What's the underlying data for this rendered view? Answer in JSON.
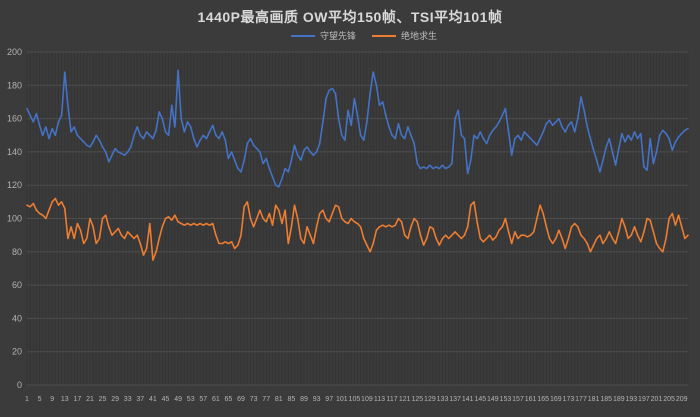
{
  "window": {
    "background": "#3b3b3b"
  },
  "chart_data": {
    "type": "line",
    "title": "1440P最高画质 OW平均150帧、TSI平均101帧",
    "xlabel": "",
    "ylabel": "",
    "ylim": [
      0,
      200
    ],
    "y_tick_step": 20,
    "x_start": 1,
    "x_count": 211,
    "x_tick_start": 1,
    "x_tick_step": 4,
    "x_tick_end": 209,
    "grid": true,
    "legend_position": "top",
    "colors": {
      "background": "#3b3b3b",
      "vertical_grid": "#343434",
      "horizontal_grid": "#4d4d4d",
      "axis_label": "#b3b3b3",
      "title_text": "#d9d9d9",
      "legend_text": "#bdbdbd"
    },
    "series": [
      {
        "name": "守望先锋",
        "color": "#4472c4",
        "values": [
          166,
          162,
          158,
          163,
          156,
          150,
          155,
          148,
          154,
          150,
          158,
          162,
          188,
          168,
          152,
          155,
          150,
          148,
          146,
          144,
          143,
          146,
          150,
          147,
          143,
          140,
          134,
          138,
          142,
          140,
          139,
          138,
          140,
          143,
          150,
          155,
          150,
          148,
          152,
          150,
          148,
          153,
          164,
          160,
          152,
          150,
          168,
          155,
          189,
          160,
          152,
          158,
          155,
          148,
          143,
          147,
          150,
          148,
          152,
          156,
          150,
          148,
          152,
          147,
          136,
          140,
          135,
          130,
          128,
          135,
          145,
          148,
          144,
          142,
          140,
          133,
          136,
          130,
          125,
          120,
          119,
          124,
          130,
          128,
          135,
          144,
          138,
          135,
          141,
          143,
          140,
          138,
          140,
          145,
          158,
          172,
          177,
          178,
          175,
          160,
          150,
          147,
          165,
          156,
          172,
          162,
          150,
          147,
          158,
          175,
          188,
          180,
          168,
          170,
          162,
          155,
          150,
          148,
          157,
          150,
          148,
          155,
          150,
          145,
          133,
          130,
          131,
          130,
          132,
          130,
          131,
          130,
          132,
          130,
          131,
          133,
          160,
          165,
          150,
          148,
          127,
          135,
          150,
          148,
          152,
          148,
          145,
          150,
          153,
          155,
          158,
          162,
          166,
          152,
          138,
          148,
          150,
          147,
          152,
          150,
          148,
          146,
          144,
          148,
          152,
          157,
          159,
          156,
          158,
          160,
          155,
          152,
          156,
          158,
          152,
          160,
          173,
          165,
          155,
          148,
          141,
          135,
          128,
          135,
          143,
          148,
          140,
          132,
          142,
          151,
          146,
          150,
          147,
          152,
          148,
          151,
          131,
          129,
          148,
          133,
          140,
          150,
          153,
          151,
          148,
          141,
          146,
          149,
          151,
          153,
          154
        ]
      },
      {
        "name": "绝地求生",
        "color": "#ed7d31",
        "values": [
          108,
          107,
          109,
          105,
          103,
          102,
          100,
          105,
          110,
          112,
          108,
          110,
          106,
          88,
          95,
          88,
          97,
          93,
          85,
          88,
          100,
          95,
          85,
          88,
          100,
          102,
          95,
          90,
          92,
          94,
          90,
          88,
          92,
          90,
          88,
          90,
          85,
          78,
          82,
          97,
          75,
          80,
          88,
          95,
          100,
          101,
          99,
          102,
          98,
          97,
          96,
          97,
          96,
          97,
          96,
          97,
          96,
          97,
          96,
          97,
          90,
          85,
          85,
          86,
          85,
          86,
          82,
          84,
          90,
          107,
          110,
          100,
          95,
          100,
          105,
          100,
          98,
          103,
          96,
          108,
          105,
          97,
          105,
          85,
          95,
          108,
          100,
          88,
          85,
          95,
          90,
          85,
          95,
          103,
          105,
          100,
          98,
          103,
          108,
          107,
          100,
          98,
          97,
          100,
          98,
          97,
          95,
          88,
          84,
          80,
          85,
          93,
          95,
          96,
          95,
          96,
          95,
          96,
          100,
          98,
          90,
          88,
          95,
          100,
          98,
          90,
          84,
          88,
          95,
          94,
          88,
          84,
          88,
          90,
          88,
          90,
          92,
          90,
          88,
          90,
          95,
          108,
          110,
          98,
          88,
          86,
          88,
          90,
          87,
          89,
          93,
          95,
          100,
          92,
          85,
          92,
          88,
          90,
          90,
          89,
          90,
          92,
          100,
          108,
          103,
          95,
          88,
          85,
          88,
          93,
          88,
          82,
          88,
          95,
          97,
          95,
          90,
          88,
          85,
          80,
          84,
          88,
          90,
          85,
          88,
          92,
          88,
          85,
          92,
          100,
          95,
          88,
          90,
          95,
          90,
          86,
          92,
          100,
          99,
          92,
          85,
          82,
          80,
          88,
          100,
          103,
          96,
          102,
          95,
          88,
          90
        ]
      }
    ]
  }
}
